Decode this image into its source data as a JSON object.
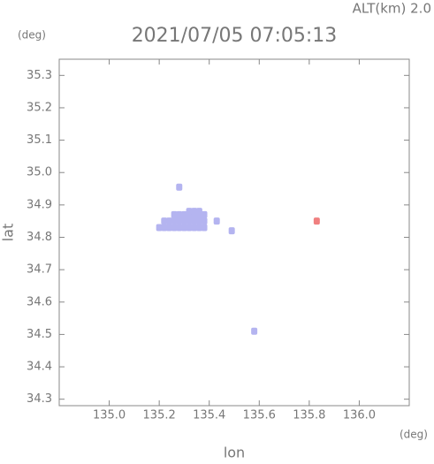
{
  "chart_data": {
    "type": "scatter",
    "title": "2021/07/05 07:05:13",
    "altitude_label": "ALT(km) 2.0",
    "y_unit": "(deg)",
    "x_unit": "(deg)",
    "x_label": "lon",
    "y_label": "lat",
    "xlim": [
      134.8,
      136.2
    ],
    "ylim": [
      34.28,
      35.35
    ],
    "xticks": [
      {
        "value": 135.0,
        "label": "135.0"
      },
      135.2,
      135.4,
      135.6,
      135.8,
      {
        "value": 136.0,
        "label": "136.0"
      }
    ],
    "yticks": [
      34.3,
      34.4,
      34.5,
      34.6,
      34.7,
      34.8,
      34.9,
      {
        "value": 35.0,
        "label": "35.0"
      },
      35.1,
      35.2,
      35.3
    ],
    "grid": false,
    "series": [
      {
        "color": "#b4b4f0",
        "x": [
          135.2,
          135.22,
          135.24,
          135.26,
          135.28,
          135.3,
          135.32,
          135.34,
          135.36,
          135.38,
          135.22,
          135.24,
          135.26,
          135.28,
          135.3,
          135.32,
          135.34,
          135.36,
          135.38,
          135.26,
          135.28,
          135.3,
          135.32,
          135.34,
          135.36,
          135.38,
          135.32,
          135.34,
          135.36,
          135.28,
          135.43,
          135.49,
          135.58
        ],
        "values": [
          34.83,
          34.83,
          34.83,
          34.83,
          34.83,
          34.83,
          34.83,
          34.83,
          34.83,
          34.83,
          34.85,
          34.85,
          34.85,
          34.85,
          34.85,
          34.85,
          34.85,
          34.85,
          34.85,
          34.87,
          34.87,
          34.87,
          34.87,
          34.87,
          34.87,
          34.87,
          34.88,
          34.88,
          34.88,
          34.955,
          34.85,
          34.82,
          34.51
        ]
      },
      {
        "color": "#f08080",
        "x": [
          135.83
        ],
        "values": [
          34.85
        ]
      }
    ]
  }
}
